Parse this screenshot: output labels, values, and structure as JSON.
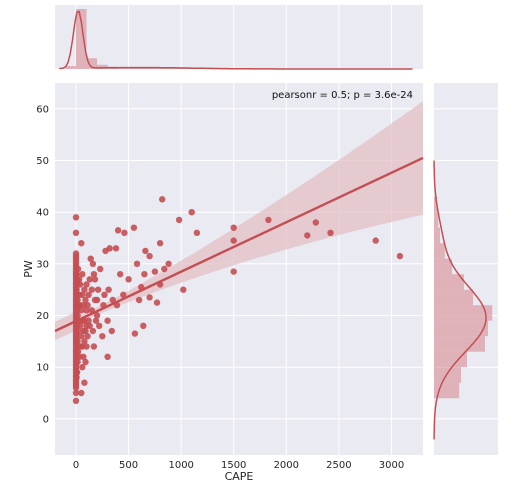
{
  "chart_data": {
    "type": "scatter",
    "xlabel": "CAPE",
    "ylabel": "PW",
    "annotation": "pearsonr = 0.5; p = 3.6e-24",
    "xlim": [
      -200,
      3300
    ],
    "ylim": [
      -7,
      65
    ],
    "xticks": [
      0,
      500,
      1000,
      1500,
      2000,
      2500,
      3000
    ],
    "yticks": [
      0,
      10,
      20,
      30,
      40,
      50,
      60
    ],
    "grid": true,
    "colors": {
      "marker": "#c44e52",
      "background": "#eaeaf2",
      "grid": "#ffffff",
      "ci_band": "#e3bfc4",
      "hist": "#dca4ab"
    },
    "regression": {
      "x": [
        -200,
        3300
      ],
      "y": [
        17.0,
        50.5
      ],
      "ci_lower": [
        14.6,
        40.5
      ],
      "ci_upper": [
        18.2,
        61.5
      ]
    },
    "points": [
      [
        0,
        3.5
      ],
      [
        0,
        5
      ],
      [
        0,
        6
      ],
      [
        0,
        6.5
      ],
      [
        0,
        7
      ],
      [
        0,
        7.5
      ],
      [
        0,
        8
      ],
      [
        0,
        8.5
      ],
      [
        0,
        9
      ],
      [
        0,
        9.5
      ],
      [
        0,
        10
      ],
      [
        0,
        10.5
      ],
      [
        0,
        11
      ],
      [
        0,
        11.5
      ],
      [
        0,
        12
      ],
      [
        0,
        12.5
      ],
      [
        0,
        13
      ],
      [
        0,
        13.5
      ],
      [
        0,
        14
      ],
      [
        0,
        14.5
      ],
      [
        0,
        15
      ],
      [
        0,
        15.5
      ],
      [
        0,
        16
      ],
      [
        0,
        16.5
      ],
      [
        0,
        17
      ],
      [
        0,
        17.5
      ],
      [
        0,
        18
      ],
      [
        0,
        18.5
      ],
      [
        0,
        19
      ],
      [
        0,
        19.5
      ],
      [
        0,
        20
      ],
      [
        0,
        20.5
      ],
      [
        0,
        21
      ],
      [
        0,
        21.5
      ],
      [
        0,
        22
      ],
      [
        0,
        22.5
      ],
      [
        0,
        23
      ],
      [
        0,
        23.5
      ],
      [
        0,
        24
      ],
      [
        0,
        24.5
      ],
      [
        0,
        25
      ],
      [
        0,
        25.5
      ],
      [
        0,
        26
      ],
      [
        0,
        26.5
      ],
      [
        0,
        27
      ],
      [
        0,
        27.5
      ],
      [
        0,
        28
      ],
      [
        0,
        28.5
      ],
      [
        0,
        29
      ],
      [
        0,
        29.5
      ],
      [
        0,
        30
      ],
      [
        0,
        30.5
      ],
      [
        0,
        31
      ],
      [
        0,
        31.5
      ],
      [
        0,
        32
      ],
      [
        0,
        36
      ],
      [
        0,
        39
      ],
      [
        5,
        8
      ],
      [
        5,
        12
      ],
      [
        5,
        16
      ],
      [
        5,
        19
      ],
      [
        5,
        22
      ],
      [
        5,
        25
      ],
      [
        5,
        28
      ],
      [
        10,
        9
      ],
      [
        10,
        14
      ],
      [
        10,
        18
      ],
      [
        10,
        21
      ],
      [
        10,
        24
      ],
      [
        10,
        27
      ],
      [
        15,
        11
      ],
      [
        15,
        15
      ],
      [
        15,
        20
      ],
      [
        15,
        23
      ],
      [
        15,
        26
      ],
      [
        20,
        13
      ],
      [
        20,
        17
      ],
      [
        20,
        22
      ],
      [
        20,
        29
      ],
      [
        30,
        12
      ],
      [
        30,
        19
      ],
      [
        30,
        24
      ],
      [
        30,
        27
      ],
      [
        40,
        14
      ],
      [
        40,
        18
      ],
      [
        40,
        22
      ],
      [
        40,
        26
      ],
      [
        50,
        5
      ],
      [
        50,
        16
      ],
      [
        50,
        21
      ],
      [
        50,
        34
      ],
      [
        60,
        10
      ],
      [
        60,
        14
      ],
      [
        60,
        19
      ],
      [
        60,
        24
      ],
      [
        60,
        28
      ],
      [
        70,
        12
      ],
      [
        70,
        17
      ],
      [
        70,
        22
      ],
      [
        80,
        7
      ],
      [
        80,
        15
      ],
      [
        80,
        19
      ],
      [
        80,
        25
      ],
      [
        90,
        11
      ],
      [
        90,
        17
      ],
      [
        90,
        23
      ],
      [
        100,
        14
      ],
      [
        100,
        18
      ],
      [
        100,
        21
      ],
      [
        100,
        26
      ],
      [
        110,
        16
      ],
      [
        110,
        22
      ],
      [
        120,
        19
      ],
      [
        120,
        24
      ],
      [
        130,
        18
      ],
      [
        130,
        27
      ],
      [
        140,
        31
      ],
      [
        150,
        21
      ],
      [
        150,
        25
      ],
      [
        160,
        17
      ],
      [
        160,
        30
      ],
      [
        170,
        14
      ],
      [
        170,
        28
      ],
      [
        180,
        23
      ],
      [
        180,
        27
      ],
      [
        190,
        19
      ],
      [
        200,
        20
      ],
      [
        200,
        23
      ],
      [
        210,
        25
      ],
      [
        220,
        18
      ],
      [
        230,
        29
      ],
      [
        250,
        16
      ],
      [
        260,
        22
      ],
      [
        270,
        24
      ],
      [
        280,
        32.5
      ],
      [
        300,
        12
      ],
      [
        300,
        19
      ],
      [
        310,
        25
      ],
      [
        320,
        33
      ],
      [
        340,
        17
      ],
      [
        350,
        23
      ],
      [
        380,
        33
      ],
      [
        390,
        22
      ],
      [
        400,
        36.5
      ],
      [
        420,
        28
      ],
      [
        450,
        24
      ],
      [
        460,
        36
      ],
      [
        500,
        27
      ],
      [
        550,
        37
      ],
      [
        560,
        16.5
      ],
      [
        580,
        30
      ],
      [
        600,
        23
      ],
      [
        620,
        25.5
      ],
      [
        640,
        18
      ],
      [
        650,
        28
      ],
      [
        660,
        32.5
      ],
      [
        700,
        23.5
      ],
      [
        700,
        31.5
      ],
      [
        750,
        28.5
      ],
      [
        770,
        22.5
      ],
      [
        800,
        26
      ],
      [
        800,
        34
      ],
      [
        820,
        42.5
      ],
      [
        840,
        29
      ],
      [
        880,
        30
      ],
      [
        980,
        38.5
      ],
      [
        1020,
        25
      ],
      [
        1100,
        40
      ],
      [
        1150,
        36
      ],
      [
        1500,
        28.5
      ],
      [
        1500,
        34.5
      ],
      [
        1500,
        37
      ],
      [
        1830,
        38.5
      ],
      [
        2200,
        35.5
      ],
      [
        2280,
        38
      ],
      [
        2420,
        36
      ],
      [
        2850,
        34.5
      ],
      [
        3080,
        31.5
      ]
    ],
    "x_hist": {
      "bins": [
        -200,
        -100,
        0,
        100,
        200,
        300,
        400,
        500,
        600,
        800,
        1000,
        1500,
        2000,
        3200
      ],
      "heights": [
        0.0,
        0.05,
        1.0,
        0.18,
        0.07,
        0.04,
        0.03,
        0.02,
        0.02,
        0.015,
        0.01,
        0.01,
        0.008
      ]
    },
    "y_hist": {
      "bins": [
        4,
        7,
        10,
        13,
        16,
        19,
        22,
        25,
        28,
        31,
        34,
        37,
        40,
        43
      ],
      "heights": [
        0.42,
        0.45,
        0.55,
        0.85,
        0.9,
        0.97,
        0.65,
        0.5,
        0.3,
        0.18,
        0.1,
        0.07,
        0.05
      ]
    }
  }
}
